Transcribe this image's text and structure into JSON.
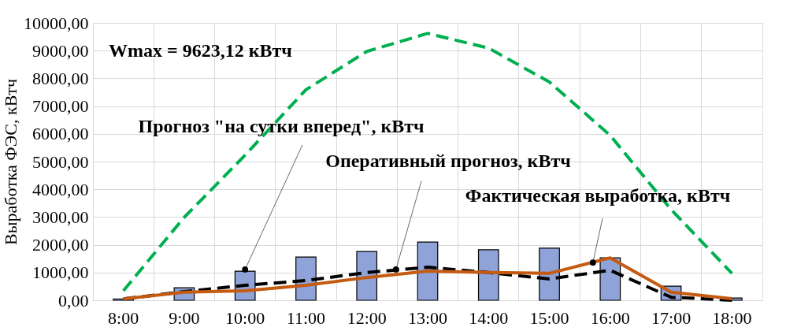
{
  "chart_data": {
    "type": "bar",
    "ylabel": "Выработка ФЭС, кВтч",
    "categories": [
      "8:00",
      "9:00",
      "10:00",
      "11:00",
      "12:00",
      "13:00",
      "14:00",
      "15:00",
      "16:00",
      "17:00",
      "18:00"
    ],
    "series": [
      {
        "name": "Прогноз \"на сутки вперед\", кВтч",
        "color": "#8fa3d8",
        "values": [
          50,
          450,
          1050,
          1560,
          1760,
          2100,
          1820,
          1880,
          1530,
          510,
          80
        ]
      },
      {
        "type": "line",
        "color": "#00b050",
        "line_style": "dashed",
        "values": [
          340,
          2990,
          5230,
          7590,
          8970,
          9620,
          9090,
          7870,
          5940,
          3270,
          970
        ]
      },
      {
        "name": "Оперативный прогноз, кВтч",
        "type": "line",
        "color": "#000000",
        "line_style": "dashed",
        "values": [
          50,
          310,
          540,
          710,
          1000,
          1190,
          1000,
          770,
          1080,
          110,
          0
        ]
      },
      {
        "name": "Фактическая выработка, кВтч",
        "type": "line",
        "color": "#c55a11",
        "line_style": "solid",
        "values": [
          50,
          290,
          340,
          540,
          820,
          1050,
          1000,
          970,
          1530,
          290,
          60
        ]
      }
    ],
    "annotations": [
      "Wmax = 9623,12 кВтч"
    ],
    "ylim": [
      0,
      10000
    ],
    "yticks": [
      {
        "value": 0,
        "label": "0,00"
      },
      {
        "value": 1000,
        "label": "1000,00"
      },
      {
        "value": 2000,
        "label": "2000,00"
      },
      {
        "value": 3000,
        "label": "3000,00"
      },
      {
        "value": 4000,
        "label": "4000,00"
      },
      {
        "value": 5000,
        "label": "5000,00"
      },
      {
        "value": 6000,
        "label": "6000,00"
      },
      {
        "value": 7000,
        "label": "7000,00"
      },
      {
        "value": 8000,
        "label": "8000,00"
      },
      {
        "value": 9000,
        "label": "9000,00"
      },
      {
        "value": 10000,
        "label": "10000,00"
      }
    ],
    "grid": true
  }
}
